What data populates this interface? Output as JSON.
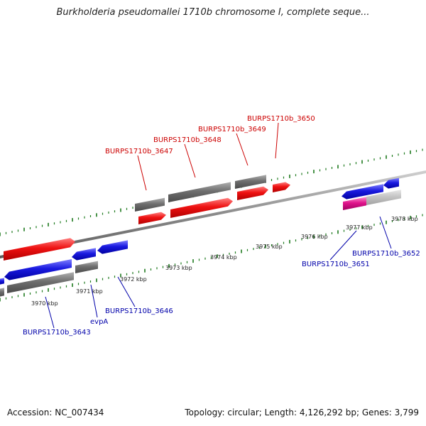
{
  "title": "Burkholderia pseudomallei 1710b chromosome I, complete seque...",
  "accession": "Accession: NC_007434",
  "summary": "Topology: circular; Length: 4,126,292 bp; Genes: 3,799",
  "kbp_labels": [
    "3970 kbp",
    "3971 kbp",
    "3972 kbp",
    "3973 kbp",
    "3974 kbp",
    "3975 kbp",
    "3976 kbp",
    "3977 kbp",
    "3978 kbp"
  ],
  "gene_labels_top": [
    "BURPS1710b_3647",
    "BURPS1710b_3648",
    "BURPS1710b_3649",
    "BURPS1710b_3650"
  ],
  "gene_labels_bottom": [
    "BURPS1710b_3643",
    "evpA",
    "BURPS1710b_3646",
    "BURPS1710b_3651",
    "BURPS1710b_3652"
  ],
  "colors": {
    "forward_gene": "#ee1111",
    "reverse_gene": "#1a1ae0",
    "gene_bar": "#707070",
    "pseudo_gene": "#e0148c",
    "tick": "#1e7a1e",
    "backbone": "#888888",
    "label_top": "#cc0000",
    "label_bottom": "#0000aa"
  }
}
